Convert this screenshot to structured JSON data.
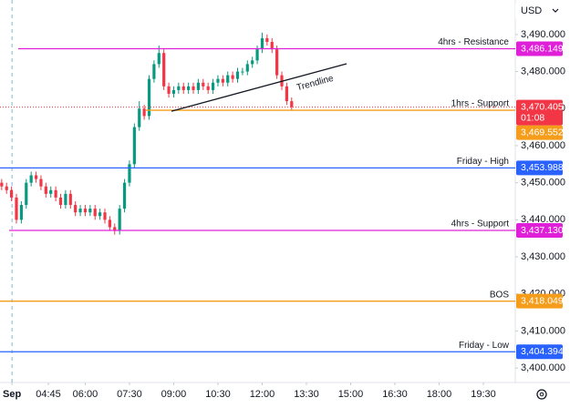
{
  "chart_data": {
    "type": "candlestick",
    "currency": "USD",
    "x": [
      190,
      200,
      210,
      220,
      230,
      240,
      250,
      260,
      270,
      280,
      290,
      300,
      310,
      320,
      330,
      340,
      350,
      360,
      370,
      380,
      390,
      400,
      410,
      420,
      430,
      440,
      450,
      460,
      470,
      480,
      490,
      500,
      510,
      520,
      530,
      540,
      550,
      560,
      570,
      580,
      590,
      600,
      610,
      620,
      630,
      640,
      650,
      660,
      670,
      680,
      690,
      700,
      710,
      720,
      730,
      740,
      750,
      760,
      770,
      780
    ],
    "open": [
      3450,
      3449,
      3448,
      3446,
      3440,
      3444,
      3450,
      3452,
      3451,
      3449,
      3447,
      3448,
      3446,
      3444,
      3447,
      3444,
      3442,
      3443,
      3442,
      3443,
      3441,
      3442,
      3440,
      3438,
      3437,
      3443,
      3450,
      3455,
      3465,
      3470,
      3468,
      3478,
      3482,
      3485,
      3476,
      3474,
      3475,
      3476,
      3475,
      3476,
      3475,
      3477,
      3476,
      3475,
      3477,
      3478,
      3477,
      3479,
      3478,
      3480,
      3480,
      3482,
      3483,
      3486,
      3489,
      3488,
      3486,
      3479,
      3476,
      3472
    ],
    "high": [
      3451,
      3450,
      3449,
      3447,
      3445,
      3451,
      3453,
      3453,
      3452,
      3450,
      3449,
      3449,
      3447,
      3448,
      3448,
      3445,
      3444,
      3444,
      3444,
      3444,
      3443,
      3443,
      3441,
      3439,
      3444,
      3451,
      3456,
      3466,
      3472,
      3471,
      3479,
      3483,
      3487,
      3486,
      3477,
      3476,
      3477,
      3477,
      3477,
      3477,
      3478,
      3478,
      3477,
      3478,
      3479,
      3479,
      3480,
      3480,
      3481,
      3481,
      3483,
      3484,
      3487,
      3490.5,
      3490,
      3489,
      3487,
      3480,
      3477,
      3473
    ],
    "low": [
      3448,
      3447,
      3445,
      3439,
      3439,
      3443,
      3449,
      3450,
      3448,
      3446,
      3446,
      3445,
      3443,
      3443,
      3443,
      3441,
      3441,
      3441,
      3441,
      3440,
      3440,
      3439,
      3437,
      3436,
      3436,
      3442,
      3449,
      3454,
      3464,
      3467,
      3467,
      3477,
      3481,
      3475,
      3473,
      3473,
      3474,
      3474,
      3474,
      3474,
      3474,
      3475,
      3474,
      3474,
      3476,
      3476,
      3476,
      3477,
      3477,
      3479,
      3479,
      3481,
      3482,
      3485,
      3487,
      3485,
      3478,
      3475,
      3471,
      3469.5
    ],
    "close": [
      3449,
      3448,
      3446,
      3440,
      3444,
      3450,
      3452,
      3451,
      3449,
      3447,
      3448,
      3446,
      3444,
      3447,
      3444,
      3442,
      3443,
      3442,
      3443,
      3441,
      3442,
      3440,
      3438,
      3437,
      3443,
      3450,
      3455,
      3465,
      3470,
      3468,
      3478,
      3482,
      3485,
      3476,
      3474,
      3475,
      3476,
      3475,
      3476,
      3475,
      3477,
      3476,
      3475,
      3477,
      3478,
      3477,
      3479,
      3478,
      3480,
      3480,
      3482,
      3483,
      3486,
      3489,
      3488,
      3486,
      3479,
      3476,
      3472,
      3470.405
    ],
    "up_color": "#089981",
    "down_color": "#f23645",
    "xlim": [
      186.6,
      1235
    ],
    "ylim": [
      3396.1,
      3499.3
    ],
    "xticks": [
      {
        "value": 211,
        "label": "Sep"
      },
      {
        "value": 285,
        "label": "04:45"
      },
      {
        "value": 360,
        "label": "06:00"
      },
      {
        "value": 450,
        "label": "07:30"
      },
      {
        "value": 540,
        "label": "09:00"
      },
      {
        "value": 630,
        "label": "10:30"
      },
      {
        "value": 720,
        "label": "12:00"
      },
      {
        "value": 810,
        "label": "13:30"
      },
      {
        "value": 900,
        "label": "15:00"
      },
      {
        "value": 990,
        "label": "16:30"
      },
      {
        "value": 1080,
        "label": "18:00"
      },
      {
        "value": 1170,
        "label": "19:30"
      }
    ],
    "yticks": [
      {
        "value": 3400,
        "label": "3,400.000"
      },
      {
        "value": 3410,
        "label": "3,410.000"
      },
      {
        "value": 3420,
        "label": "3,420.000"
      },
      {
        "value": 3430,
        "label": "3,430.000"
      },
      {
        "value": 3440,
        "label": "3,440.000"
      },
      {
        "value": 3450,
        "label": "3,450.000"
      },
      {
        "value": 3460,
        "label": "3,460.000"
      },
      {
        "value": 3470,
        "label": "3,470.000"
      },
      {
        "value": 3480,
        "label": "3,480.000"
      },
      {
        "value": 3490,
        "label": "3,490.000"
      }
    ],
    "levels": [
      {
        "name": "4hrs - Resistance",
        "value": 3486.149,
        "value_label": "3,486.149",
        "color": "#e020d8"
      },
      {
        "name": "1hrs - Support",
        "value": 3469.552,
        "value_label": "3,469.552",
        "color": "#f59d1a"
      },
      {
        "name": "Friday - High",
        "value": 3453.988,
        "value_label": "3,453.988",
        "color": "#2962ff"
      },
      {
        "name": "4hrs - Support",
        "value": 3437.13,
        "value_label": "3,437.130",
        "color": "#e020d8"
      },
      {
        "name": "BOS",
        "value": 3418.049,
        "value_label": "3,418.049",
        "color": "#f59d1a"
      },
      {
        "name": "Friday - Low",
        "value": 3404.394,
        "value_label": "3,404.394",
        "color": "#2962ff"
      }
    ],
    "last_price": {
      "value": 3470.405,
      "label": "3,470.405",
      "countdown": "01:08",
      "color": "#f23645"
    },
    "trendline": {
      "label": "Trendline",
      "x": [
        535.5,
        891.8
      ],
      "y": [
        3469.3,
        3482.1
      ]
    }
  }
}
